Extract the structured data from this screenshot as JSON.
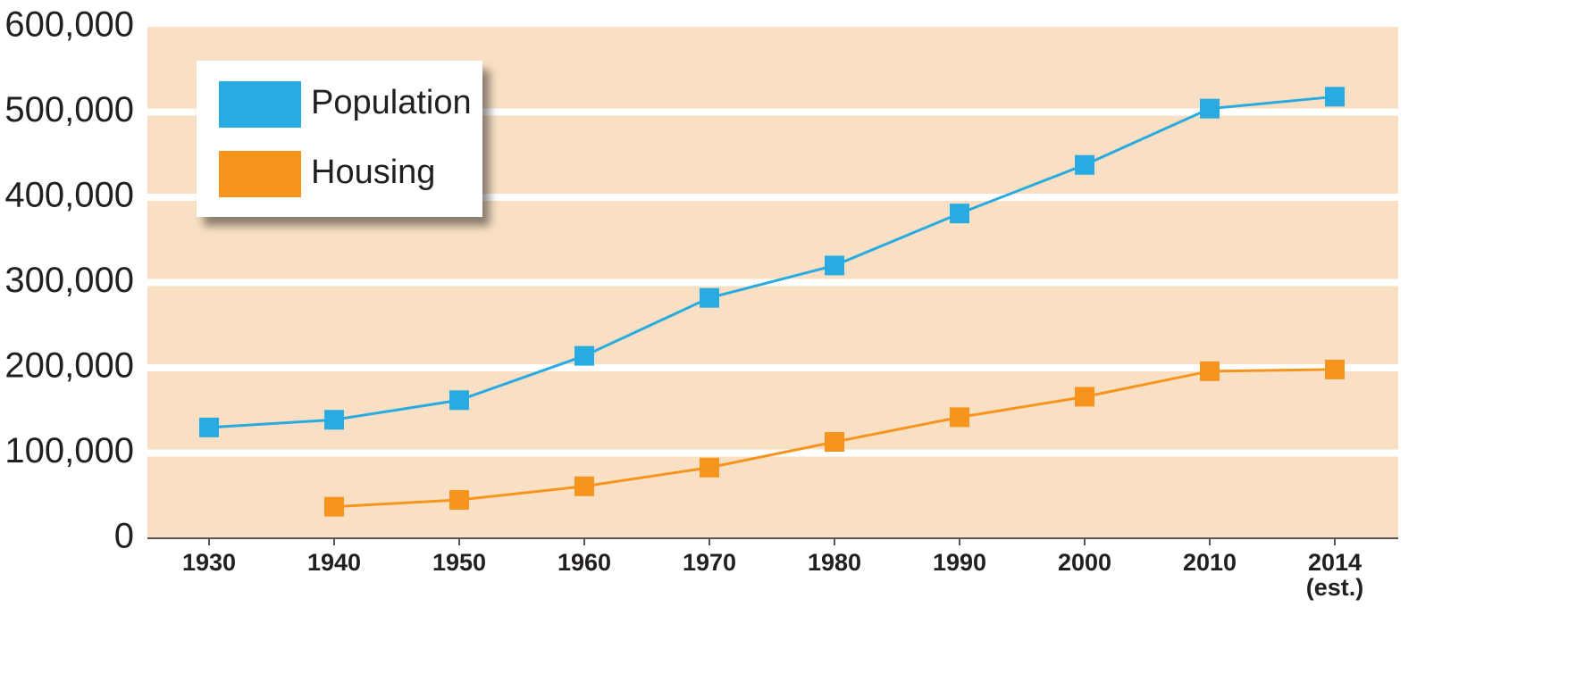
{
  "chart_data": {
    "type": "line",
    "categories": [
      "1930",
      "1940",
      "1950",
      "1960",
      "1970",
      "1980",
      "1990",
      "2000",
      "2010",
      "2014 (est.)"
    ],
    "series": [
      {
        "name": "Population",
        "color": "#29aae1",
        "values": [
          130000,
          139000,
          162000,
          214000,
          282000,
          320000,
          381000,
          438000,
          504000,
          518000
        ]
      },
      {
        "name": "Housing",
        "color": "#f7941d",
        "values": [
          null,
          37000,
          45000,
          61000,
          83000,
          113000,
          142000,
          166000,
          196000,
          198000
        ]
      }
    ],
    "ylim": [
      0,
      600000
    ],
    "yticks": [
      0,
      {
        "value": 100000,
        "label": "100,000"
      },
      {
        "value": 200000,
        "label": "200,000"
      },
      {
        "value": 300000,
        "label": "300,000"
      },
      {
        "value": 400000,
        "label": "400,000"
      },
      {
        "value": 500000,
        "label": "500,000"
      },
      {
        "value": 600000,
        "label": "600,000"
      }
    ],
    "grid": true,
    "legend": "upper left"
  }
}
